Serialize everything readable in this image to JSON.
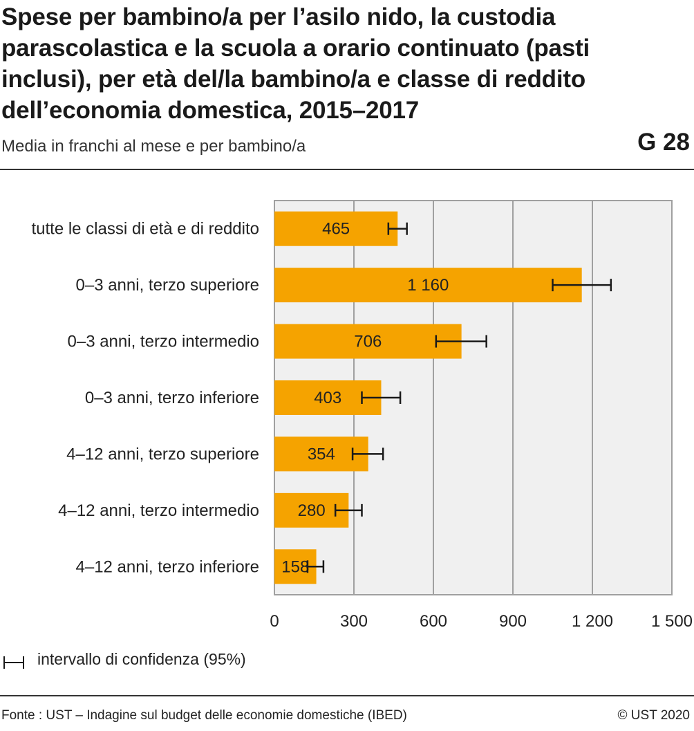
{
  "header": {
    "title": "Spese per bambino/a per l’asilo nido, la custodia parascolastica e la scuola a orario continuato (pasti inclusi), per età del/la bambino/a e classe di reddito dell’economia domestica, 2015–2017",
    "subtitle": "Media in franchi al mese e per bambino/a",
    "figure_number": "G 28"
  },
  "legend": {
    "label": "intervallo di confidenza (95%)"
  },
  "footer": {
    "source": "Fonte : UST – Indagine sul budget delle economie domestiche (IBED)",
    "copyright": "© UST 2020"
  },
  "chart_data": {
    "type": "bar",
    "orientation": "horizontal",
    "categories": [
      "tutte le classi di età e di reddito",
      "0–3 anni, terzo superiore",
      "0–3 anni, terzo intermedio",
      "0–3 anni, terzo inferiore",
      "4–12 anni, terzo superiore",
      "4–12 anni, terzo intermedio",
      "4–12 anni, terzo inferiore"
    ],
    "values": [
      465,
      1160,
      706,
      403,
      354,
      280,
      158
    ],
    "value_labels": [
      "465",
      "1 160",
      "706",
      "403",
      "354",
      "280",
      "158"
    ],
    "confidence_intervals": [
      [
        430,
        500
      ],
      [
        1050,
        1270
      ],
      [
        610,
        800
      ],
      [
        330,
        475
      ],
      [
        295,
        410
      ],
      [
        230,
        330
      ],
      [
        125,
        185
      ]
    ],
    "xlim": [
      0,
      1500
    ],
    "xticks": [
      0,
      300,
      600,
      900,
      1200,
      1500
    ],
    "xtick_labels": [
      "0",
      "300",
      "600",
      "900",
      "1 200",
      "1 500"
    ],
    "grid": true,
    "legend_position": "bottom-left",
    "colors": {
      "bar": "#f5a300",
      "plot_background": "#f0f0f0",
      "grid": "#a0a0a0",
      "error_bar": "#1a1a1a"
    }
  }
}
